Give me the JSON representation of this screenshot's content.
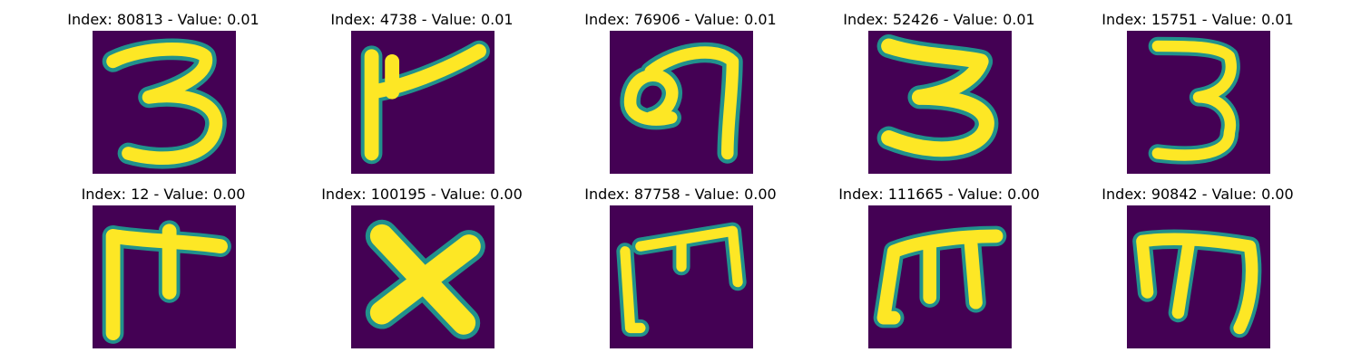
{
  "colors": {
    "background": "#440154",
    "stroke": "#fde725",
    "edge": "#21918c"
  },
  "panels": [
    {
      "title": "Index: 80813 - Value: 0.01",
      "glyph": "3"
    },
    {
      "title": "Index: 4738 - Value: 0.01",
      "glyph": "F-shape"
    },
    {
      "title": "Index: 76906 - Value: 0.01",
      "glyph": "loop-hook"
    },
    {
      "title": "Index: 52426 - Value: 0.01",
      "glyph": "3"
    },
    {
      "title": "Index: 15751 - Value: 0.01",
      "glyph": "3"
    },
    {
      "title": "Index: 12 - Value: 0.00",
      "glyph": "comb"
    },
    {
      "title": "Index: 100195 - Value: 0.00",
      "glyph": "X"
    },
    {
      "title": "Index: 87758 - Value: 0.00",
      "glyph": "comb"
    },
    {
      "title": "Index: 111665 - Value: 0.00",
      "glyph": "comb"
    },
    {
      "title": "Index: 90842 - Value: 0.00",
      "glyph": "comb"
    }
  ]
}
